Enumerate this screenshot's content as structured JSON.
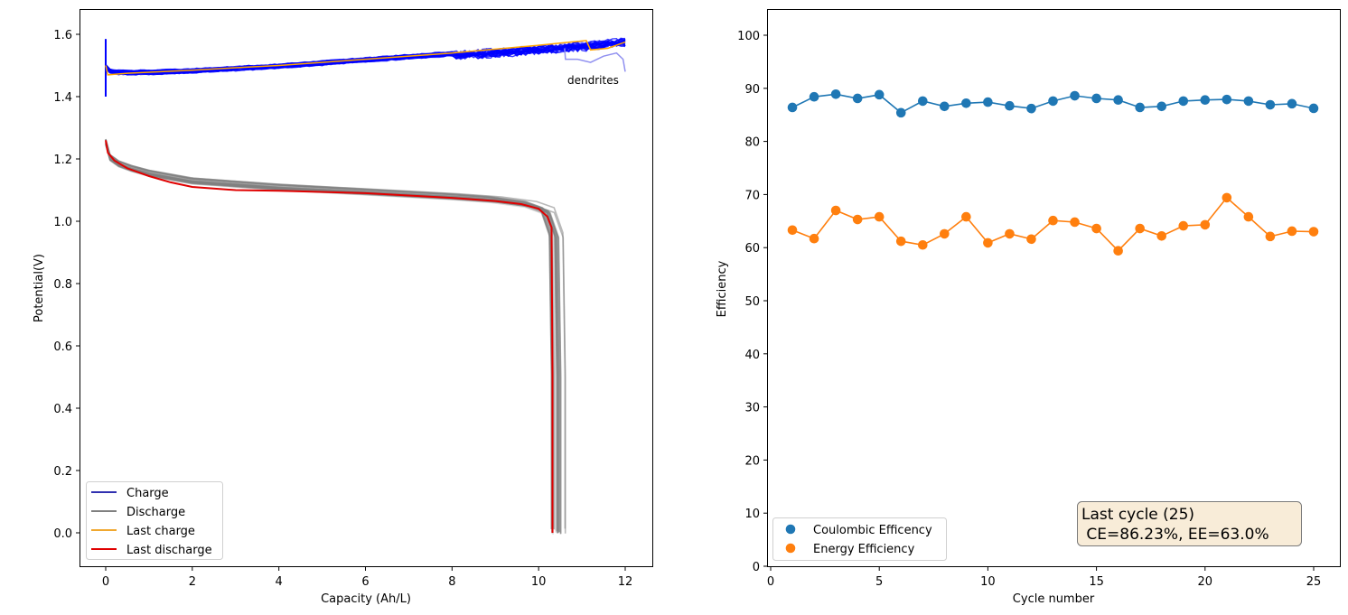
{
  "chart_data": [
    {
      "type": "line",
      "title": "",
      "xlabel": "Capacity (Ah/L)",
      "ylabel": "Potential(V)",
      "xlim": [
        -0.6,
        12.6
      ],
      "ylim": [
        -0.1,
        1.68
      ],
      "xticks": [
        0,
        2,
        4,
        6,
        8,
        10,
        12
      ],
      "yticks": [
        0.0,
        0.2,
        0.4,
        0.6,
        0.8,
        1.0,
        1.2,
        1.4,
        1.6
      ],
      "xtick_labels": [
        "0",
        "2",
        "4",
        "6",
        "8",
        "10",
        "12"
      ],
      "ytick_labels": [
        "0.0",
        "0.2",
        "0.4",
        "0.6",
        "0.8",
        "1.0",
        "1.2",
        "1.4",
        "1.6"
      ],
      "grid": false,
      "legend_position": "lower-left",
      "annotation": "dendrites",
      "series": [
        {
          "name": "Charge",
          "color": "#0000ff",
          "legend_color": "#3030b0",
          "x": [
            0,
            0.05,
            0.3,
            1,
            2,
            4,
            6,
            8,
            10,
            11,
            12
          ],
          "y": [
            1.5,
            1.485,
            1.48,
            1.48,
            1.485,
            1.5,
            1.52,
            1.54,
            1.56,
            1.57,
            1.585
          ]
        },
        {
          "name": "Discharge",
          "color": "#808080",
          "x": [
            0,
            0.1,
            0.3,
            0.6,
            1,
            2,
            4,
            6,
            8,
            9,
            9.8,
            10.2,
            10.4,
            10.45,
            10.45
          ],
          "y": [
            1.25,
            1.2,
            1.18,
            1.165,
            1.15,
            1.125,
            1.105,
            1.09,
            1.075,
            1.065,
            1.05,
            1.03,
            0.95,
            0.5,
            0.0
          ]
        },
        {
          "name": "Last charge",
          "color": "#ffa500",
          "legend_color": "#f0a830",
          "x": [
            0,
            0.05,
            0.5,
            2,
            3.3,
            4,
            6,
            8,
            10,
            11.1,
            11.2,
            11.6,
            12
          ],
          "y": [
            1.5,
            1.47,
            1.475,
            1.485,
            1.495,
            1.5,
            1.52,
            1.54,
            1.565,
            1.58,
            1.55,
            1.555,
            1.575
          ]
        },
        {
          "name": "Last discharge",
          "color": "#e00000",
          "x": [
            0,
            0.05,
            0.2,
            0.5,
            1,
            1.5,
            2,
            3,
            4,
            6,
            8,
            9,
            9.6,
            10,
            10.2,
            10.3,
            10.32,
            10.32
          ],
          "y": [
            1.26,
            1.22,
            1.195,
            1.17,
            1.145,
            1.125,
            1.11,
            1.1,
            1.098,
            1.09,
            1.075,
            1.065,
            1.055,
            1.04,
            1.015,
            0.98,
            0.5,
            0.0
          ]
        }
      ]
    },
    {
      "type": "line",
      "title": "",
      "xlabel": "Cycle number",
      "ylabel": "Efficiency",
      "xlim": [
        -0.3,
        26.3
      ],
      "ylim": [
        0,
        105
      ],
      "xticks": [
        0,
        5,
        10,
        15,
        20,
        25
      ],
      "yticks": [
        0,
        10,
        20,
        30,
        40,
        50,
        60,
        70,
        80,
        90,
        100
      ],
      "xtick_labels": [
        "0",
        "5",
        "10",
        "15",
        "20",
        "25"
      ],
      "ytick_labels": [
        "0",
        "10",
        "20",
        "30",
        "40",
        "50",
        "60",
        "70",
        "80",
        "90",
        "100"
      ],
      "grid": false,
      "legend_position": "lower-left",
      "x": [
        1,
        2,
        3,
        4,
        5,
        6,
        7,
        8,
        9,
        10,
        11,
        12,
        13,
        14,
        15,
        16,
        17,
        18,
        19,
        20,
        21,
        22,
        23,
        24,
        25
      ],
      "series": [
        {
          "name": "Coulombic Efficency",
          "color": "#1f77b4",
          "values": [
            86.4,
            88.4,
            88.9,
            88.1,
            88.8,
            85.4,
            87.6,
            86.6,
            87.2,
            87.4,
            86.7,
            86.2,
            87.6,
            88.6,
            88.1,
            87.8,
            86.4,
            86.6,
            87.6,
            87.8,
            87.9,
            87.6,
            86.9,
            87.1,
            86.23
          ]
        },
        {
          "name": "Energy Efficiency",
          "color": "#ff7f0e",
          "values": [
            63.3,
            61.7,
            67.0,
            65.3,
            65.8,
            61.2,
            60.5,
            62.6,
            65.8,
            60.9,
            62.6,
            61.6,
            65.1,
            64.8,
            63.6,
            59.4,
            63.6,
            62.2,
            64.1,
            64.3,
            69.4,
            65.8,
            62.1,
            63.1,
            63.0
          ]
        }
      ],
      "annotation_box": {
        "line1": "Last cycle (25)",
        "line2": " CE=86.23%, EE=63.0%",
        "background": "#f8ecd8",
        "border": "#7a7a7a"
      }
    }
  ]
}
